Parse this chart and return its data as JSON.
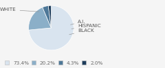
{
  "labels": [
    "WHITE",
    "HISPANIC",
    "BLACK",
    "A.I."
  ],
  "values": [
    73.4,
    20.2,
    4.3,
    2.0
  ],
  "colors": [
    "#d9e4ef",
    "#8bafc8",
    "#4e7898",
    "#1e3d5c"
  ],
  "legend_labels": [
    "73.4%",
    "20.2%",
    "4.3%",
    "2.0%"
  ],
  "legend_colors": [
    "#d9e4ef",
    "#8bafc8",
    "#4e7898",
    "#1e3d5c"
  ],
  "startangle": 90,
  "label_fontsize": 5.2,
  "legend_fontsize": 5.2,
  "background_color": "#f5f5f5"
}
